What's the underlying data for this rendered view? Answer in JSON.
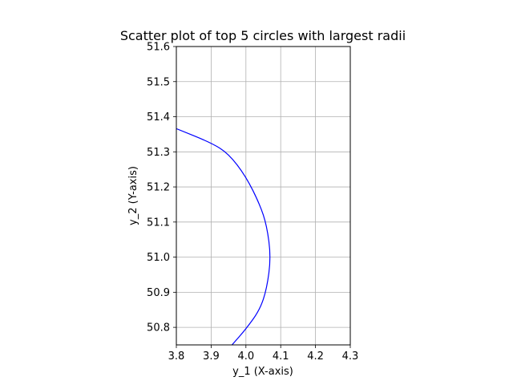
{
  "chart_data": {
    "type": "scatter",
    "title": "Scatter plot of top 5 circles with largest radii",
    "xlabel": "y_1 (X-axis)",
    "ylabel": "y_2 (Y-axis)",
    "xlim": [
      3.8,
      4.3
    ],
    "ylim": [
      50.75,
      51.6
    ],
    "xticks": [
      "3.8",
      "3.9",
      "4.0",
      "4.1",
      "4.2",
      "4.3"
    ],
    "yticks": [
      "50.8",
      "50.9",
      "51.0",
      "51.1",
      "51.2",
      "51.3",
      "51.4",
      "51.5",
      "51.6"
    ],
    "grid": true,
    "series": [
      {
        "shape": "circle",
        "color": "#0000ff",
        "points": [
          [
            3.8,
            51.366
          ],
          [
            3.9,
            51.326
          ],
          [
            3.95,
            51.295
          ],
          [
            4.0,
            51.23
          ],
          [
            4.04,
            51.15
          ],
          [
            4.06,
            51.09
          ],
          [
            4.072,
            51.0
          ],
          [
            4.06,
            50.91
          ],
          [
            4.04,
            50.85
          ],
          [
            4.0,
            50.795
          ],
          [
            3.96,
            50.75
          ]
        ]
      }
    ]
  }
}
